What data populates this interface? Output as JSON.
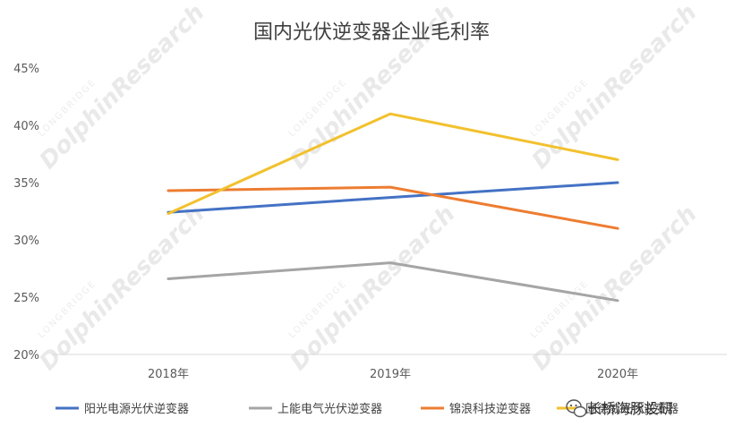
{
  "chart_data": {
    "type": "line",
    "title": "国内光伏逆变器企业毛利率",
    "categories": [
      "2018年",
      "2019年",
      "2020年"
    ],
    "ylim": [
      20,
      45
    ],
    "yticks": [
      20,
      25,
      30,
      35,
      40,
      45
    ],
    "ytick_labels": [
      "20%",
      "25%",
      "30%",
      "35%",
      "40%",
      "45%"
    ],
    "grid": false,
    "legend_position": "bottom",
    "series": [
      {
        "name": "阳光电源光伏逆变器",
        "color": "#4472C4",
        "values": [
          32.4,
          33.7,
          35.0
        ]
      },
      {
        "name": "上能电气光伏逆变器",
        "color": "#A5A5A5",
        "values": [
          26.6,
          28.0,
          24.7
        ]
      },
      {
        "name": "锦浪科技逆变器",
        "color": "#ED7D31",
        "values": [
          34.3,
          34.6,
          31.0
        ]
      },
      {
        "name": "固德威光伏逆变器",
        "color": "#F2C12E",
        "values": [
          32.3,
          41.0,
          37.0
        ]
      }
    ]
  },
  "watermark": {
    "brand_small": "LONGBRIDGE",
    "brand_large": "DolphinResearch"
  },
  "brand_badge": {
    "icon": "wechat-icon",
    "text": "长桥海豚投研"
  }
}
